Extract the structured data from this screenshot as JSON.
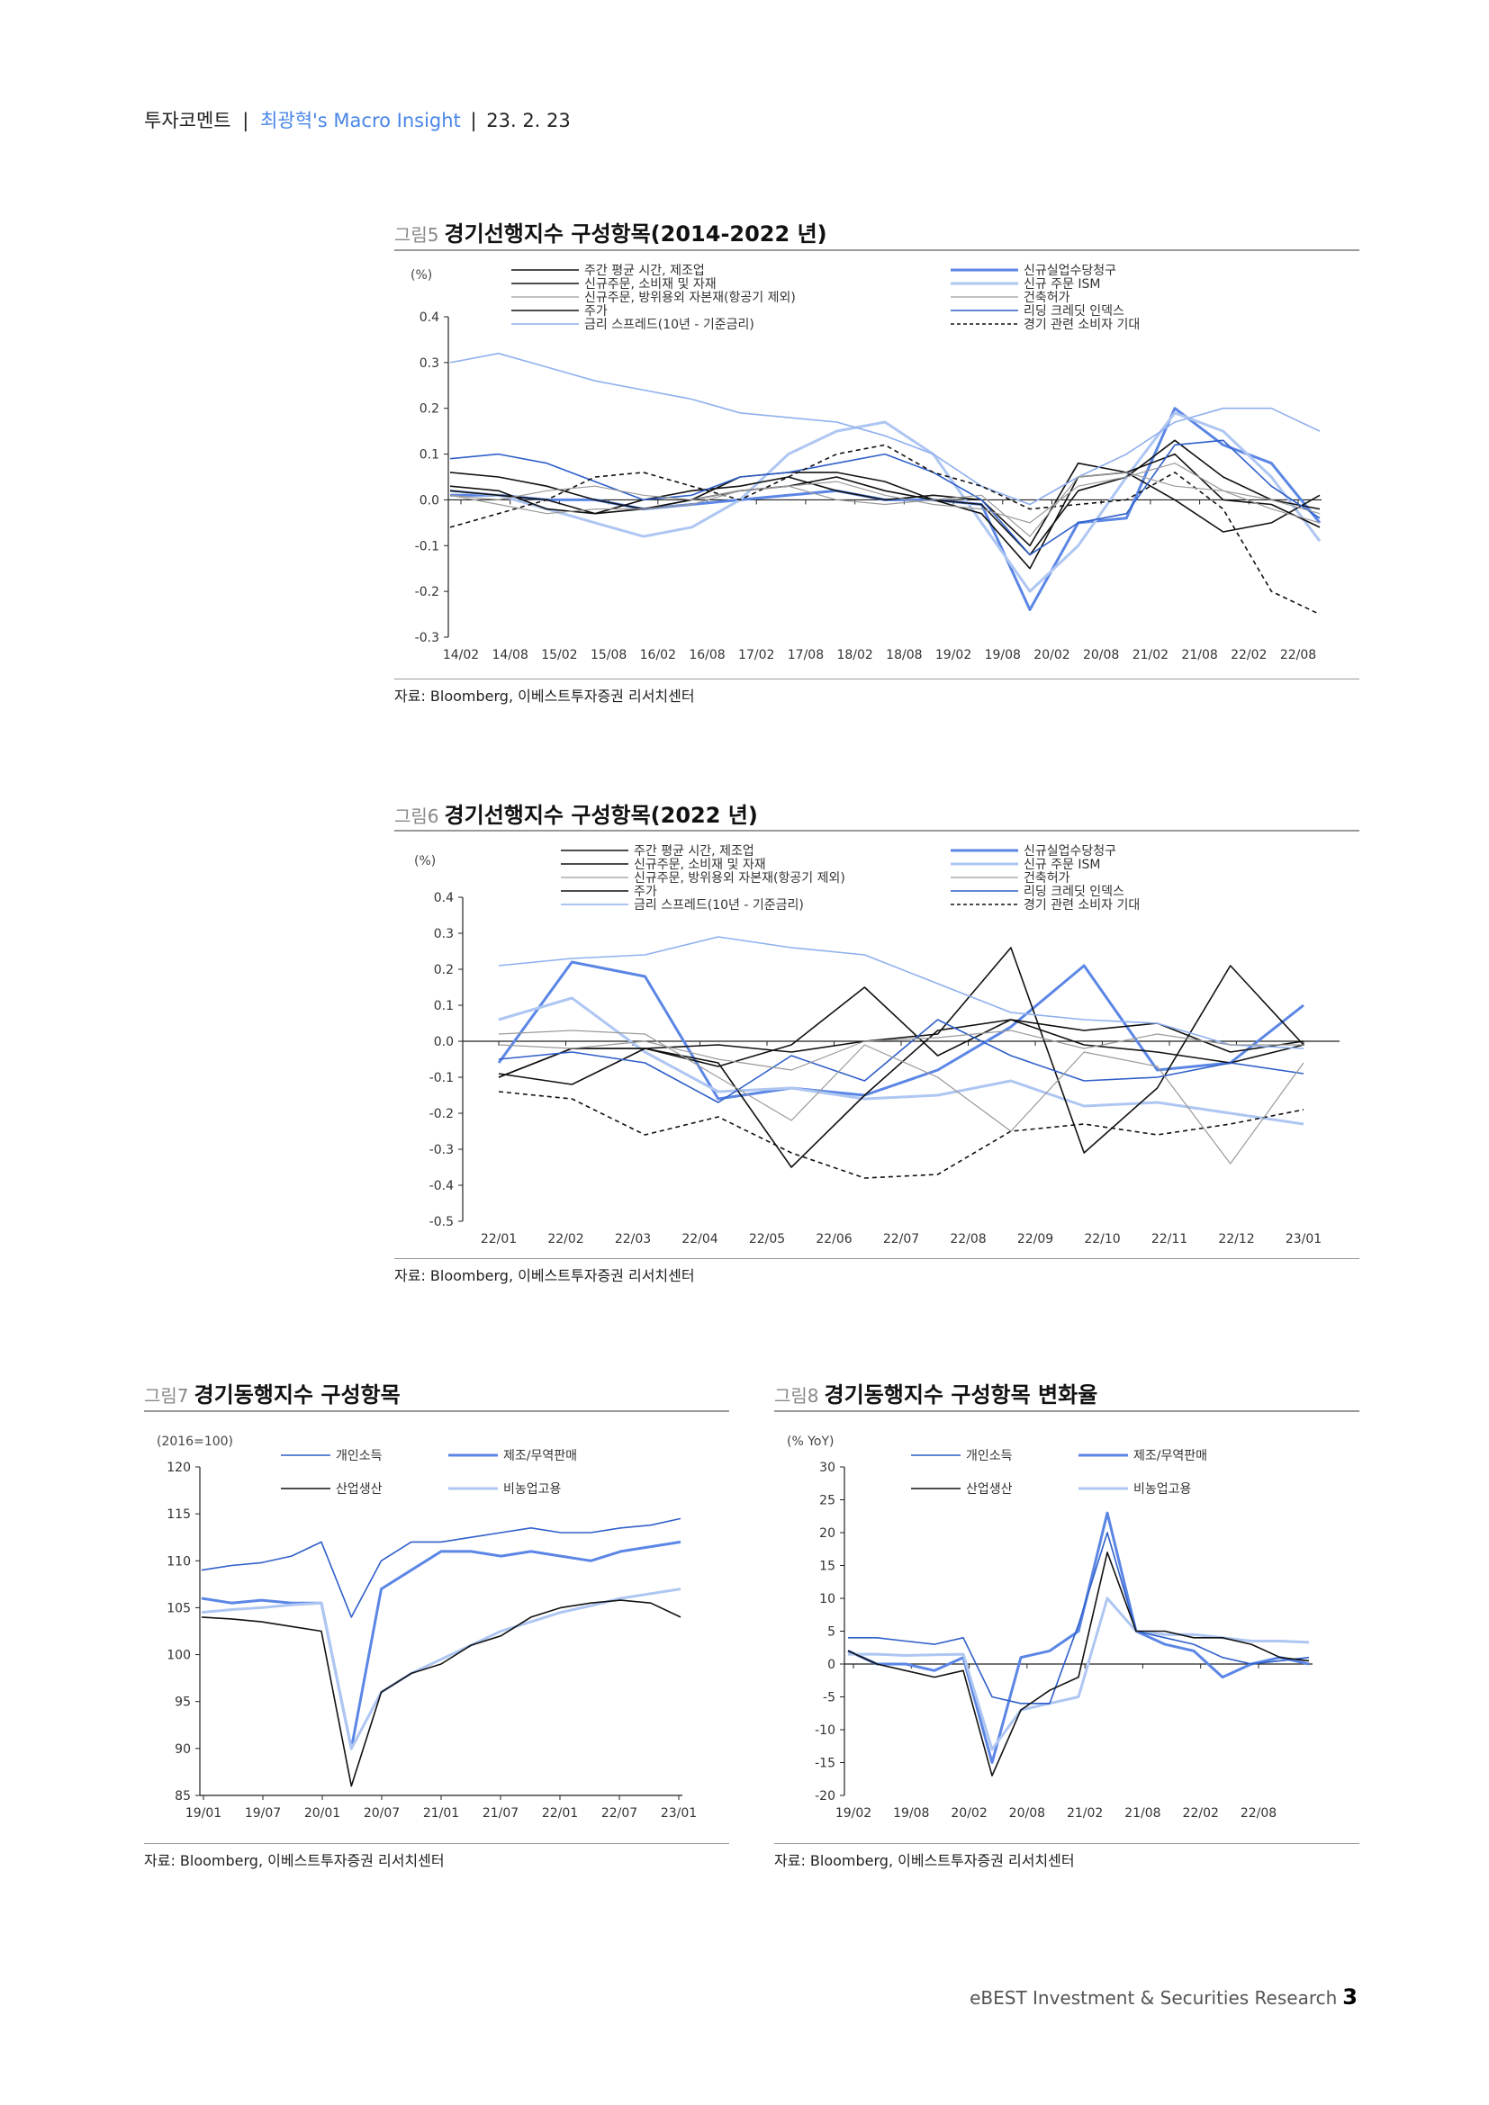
{
  "header": {
    "category": "투자코멘트",
    "separator1": "|",
    "series": "최광혁's Macro Insight",
    "separator2": "|",
    "date": "23. 2. 23"
  },
  "footer": {
    "company": "eBEST Investment & Securities Research",
    "page": "3"
  },
  "source_note": "자료: Bloomberg, 이베스트투자증권 리서치센터",
  "colors": {
    "dark": "#111111",
    "blue": "#2f5fc9",
    "mid_blue": "#5b86e5",
    "light_blue": "#aec6f2",
    "gray": "#9a9a9a",
    "pale_blue": "#8fb0ee"
  },
  "fig5": {
    "num": "그림5",
    "title": "경기선행지수 구성항목(2014-2022 년)",
    "unit": "(%)",
    "legend_left": [
      "주간 평균 시간, 제조업",
      "신규주문, 소비재 및 자재",
      "신규주문, 방위용외 자본재(항공기 제외)",
      "주가",
      "금리 스프레드(10년 - 기준금리)"
    ],
    "legend_right": [
      "신규실업수당청구",
      "신규 주문 ISM",
      "건축허가",
      "리딩 크레딧 인덱스",
      "경기 관련 소비자 기대"
    ],
    "y_ticks": [
      "0.4",
      "0.3",
      "0.2",
      "0.1",
      "0.0",
      "-0.1",
      "-0.2",
      "-0.3"
    ],
    "x_ticks": [
      "14/02",
      "14/08",
      "15/02",
      "15/08",
      "16/02",
      "16/08",
      "17/02",
      "17/08",
      "18/02",
      "18/08",
      "19/02",
      "19/08",
      "20/02",
      "20/08",
      "21/02",
      "21/08",
      "22/02",
      "22/08"
    ]
  },
  "fig6": {
    "num": "그림6",
    "title": "경기선행지수 구성항목(2022 년)",
    "unit": "(%)",
    "legend_left": [
      "주간 평균 시간, 제조업",
      "신규주문, 소비재 및 자재",
      "신규주문, 방위용외 자본재(항공기 제외)",
      "주가",
      "금리 스프레드(10년 - 기준금리)"
    ],
    "legend_right": [
      "신규실업수당청구",
      "신규 주문 ISM",
      "건축허가",
      "리딩 크레딧 인덱스",
      "경기 관련 소비자 기대"
    ],
    "y_ticks": [
      "0.4",
      "0.3",
      "0.2",
      "0.1",
      "0.0",
      "-0.1",
      "-0.2",
      "-0.3",
      "-0.4",
      "-0.5"
    ],
    "x_ticks": [
      "22/01",
      "22/02",
      "22/03",
      "22/04",
      "22/05",
      "22/06",
      "22/07",
      "22/08",
      "22/09",
      "22/10",
      "22/11",
      "22/12",
      "23/01"
    ]
  },
  "fig7": {
    "num": "그림7",
    "title": "경기동행지수 구성항목",
    "unit": "(2016=100)",
    "legend": [
      "개인소득",
      "제조/무역판매",
      "산업생산",
      "비농업고용"
    ],
    "y_ticks": [
      "120",
      "115",
      "110",
      "105",
      "100",
      "95",
      "90",
      "85"
    ],
    "x_ticks": [
      "19/01",
      "19/07",
      "20/01",
      "20/07",
      "21/01",
      "21/07",
      "22/01",
      "22/07",
      "23/01"
    ]
  },
  "fig8": {
    "num": "그림8",
    "title": "경기동행지수 구성항목 변화율",
    "unit": "(% YoY)",
    "legend": [
      "개인소득",
      "제조/무역판매",
      "산업생산",
      "비농업고용"
    ],
    "y_ticks": [
      "30",
      "25",
      "20",
      "15",
      "10",
      "5",
      "0",
      "-5",
      "-10",
      "-15",
      "-20"
    ],
    "x_ticks": [
      "19/02",
      "19/08",
      "20/02",
      "20/08",
      "21/02",
      "21/08",
      "22/02",
      "22/08"
    ]
  },
  "chart_data": [
    {
      "type": "line",
      "title": "경기선행지수 구성항목(2014-2022 년)",
      "ylabel": "(%)",
      "ylim": [
        -0.3,
        0.4
      ],
      "x": [
        "14/02",
        "14/08",
        "15/02",
        "15/08",
        "16/02",
        "16/08",
        "17/02",
        "17/08",
        "18/02",
        "18/08",
        "19/02",
        "19/08",
        "20/02",
        "20/08",
        "21/02",
        "21/08",
        "22/02",
        "22/08",
        "22/12"
      ],
      "series": [
        {
          "name": "주간 평균 시간, 제조업",
          "color": "#111111",
          "values": [
            0.06,
            0.05,
            0.03,
            0.0,
            -0.02,
            0.0,
            0.02,
            0.03,
            0.05,
            0.02,
            0.0,
            -0.03,
            -0.15,
            0.05,
            0.06,
            0.1,
            0.0,
            -0.01,
            -0.06
          ]
        },
        {
          "name": "신규주문, 소비재 및 자재",
          "color": "#111111",
          "values": [
            0.03,
            0.02,
            -0.02,
            -0.03,
            -0.02,
            0.0,
            0.05,
            0.06,
            0.06,
            0.04,
            0.0,
            -0.01,
            -0.12,
            0.02,
            0.05,
            0.13,
            0.05,
            0.0,
            -0.02
          ]
        },
        {
          "name": "신규주문, 방위용외 자본재(항공기 제외)",
          "color": "#9a9a9a",
          "values": [
            0.01,
            -0.01,
            -0.03,
            -0.02,
            -0.02,
            -0.01,
            0.02,
            0.03,
            0.04,
            0.01,
            -0.01,
            -0.02,
            -0.05,
            0.03,
            0.05,
            0.08,
            0.02,
            0.0,
            -0.03
          ]
        },
        {
          "name": "주가",
          "color": "#111111",
          "values": [
            0.02,
            0.01,
            0.0,
            -0.03,
            0.0,
            0.02,
            0.03,
            0.05,
            0.02,
            0.0,
            0.01,
            0.0,
            -0.1,
            0.08,
            0.06,
            0.0,
            -0.07,
            -0.05,
            0.01
          ]
        },
        {
          "name": "금리 스프레드(10년 - 기준금리)",
          "color": "#8fb0ee",
          "values": [
            0.3,
            0.32,
            0.29,
            0.26,
            0.24,
            0.22,
            0.19,
            0.18,
            0.17,
            0.14,
            0.1,
            0.03,
            -0.01,
            0.05,
            0.1,
            0.17,
            0.2,
            0.2,
            0.15
          ]
        },
        {
          "name": "신규실업수당청구",
          "color": "#5b86e5",
          "values": [
            0.01,
            0.01,
            0.0,
            0.0,
            -0.02,
            -0.01,
            0.0,
            0.01,
            0.02,
            0.0,
            0.0,
            -0.01,
            -0.24,
            -0.05,
            -0.04,
            0.2,
            0.12,
            0.08,
            -0.05
          ]
        },
        {
          "name": "신규 주문 ISM",
          "color": "#aec6f2",
          "values": [
            0.02,
            0.01,
            -0.02,
            -0.05,
            -0.08,
            -0.06,
            0.0,
            0.1,
            0.15,
            0.17,
            0.1,
            -0.05,
            -0.2,
            -0.1,
            0.05,
            0.19,
            0.15,
            0.05,
            -0.09
          ]
        },
        {
          "name": "건축허가",
          "color": "#9a9a9a",
          "values": [
            0.01,
            0.0,
            0.02,
            0.03,
            0.01,
            0.0,
            0.02,
            0.03,
            0.0,
            -0.01,
            0.0,
            0.01,
            -0.08,
            0.05,
            0.06,
            0.03,
            0.02,
            -0.02,
            -0.05
          ]
        },
        {
          "name": "리딩 크레딧 인덱스",
          "color": "#2f5fc9",
          "values": [
            0.09,
            0.1,
            0.08,
            0.04,
            0.0,
            0.01,
            0.05,
            0.06,
            0.08,
            0.1,
            0.06,
            0.0,
            -0.12,
            -0.05,
            -0.03,
            0.12,
            0.13,
            0.03,
            -0.04
          ]
        },
        {
          "name": "경기 관련 소비자 기대",
          "color": "#111111",
          "dashed": true,
          "values": [
            -0.06,
            -0.03,
            0.0,
            0.05,
            0.06,
            0.03,
            0.0,
            0.05,
            0.1,
            0.12,
            0.06,
            0.03,
            -0.02,
            -0.01,
            0.0,
            0.06,
            -0.02,
            -0.2,
            -0.25
          ]
        }
      ]
    },
    {
      "type": "line",
      "title": "경기선행지수 구성항목(2022 년)",
      "ylabel": "(%)",
      "ylim": [
        -0.5,
        0.4
      ],
      "x": [
        "22/01",
        "22/02",
        "22/03",
        "22/04",
        "22/05",
        "22/06",
        "22/07",
        "22/08",
        "22/09",
        "22/10",
        "22/11",
        "22/12"
      ],
      "series": [
        {
          "name": "주간 평균 시간, 제조업",
          "color": "#111111",
          "values": [
            -0.1,
            -0.02,
            -0.02,
            -0.01,
            -0.03,
            0.0,
            0.02,
            0.26,
            -0.31,
            -0.13,
            0.21,
            -0.01
          ]
        },
        {
          "name": "신규주문, 소비재 및 자재",
          "color": "#111111",
          "values": [
            -0.09,
            -0.12,
            -0.02,
            -0.07,
            -0.01,
            0.15,
            -0.04,
            0.06,
            0.03,
            0.05,
            -0.03,
            0.0
          ]
        },
        {
          "name": "신규주문, 방위용외 자본재(항공기 제외)",
          "color": "#9a9a9a",
          "values": [
            -0.01,
            -0.02,
            0.0,
            -0.05,
            -0.08,
            0.0,
            0.01,
            0.03,
            -0.02,
            0.02,
            -0.01,
            -0.01
          ]
        },
        {
          "name": "주가",
          "color": "#111111",
          "values": [
            -0.1,
            -0.02,
            -0.02,
            -0.06,
            -0.35,
            -0.15,
            0.03,
            0.06,
            -0.01,
            -0.03,
            -0.06,
            -0.01
          ]
        },
        {
          "name": "금리 스프레드(10년 - 기준금리)",
          "color": "#8fb0ee",
          "values": [
            0.21,
            0.23,
            0.24,
            0.29,
            0.26,
            0.24,
            0.16,
            0.08,
            0.06,
            0.05,
            -0.01,
            -0.02
          ]
        },
        {
          "name": "신규실업수당청구",
          "color": "#5b86e5",
          "values": [
            -0.06,
            0.22,
            0.18,
            -0.16,
            -0.13,
            -0.15,
            -0.08,
            0.04,
            0.21,
            -0.08,
            -0.06,
            0.1
          ]
        },
        {
          "name": "신규 주문 ISM",
          "color": "#aec6f2",
          "values": [
            0.06,
            0.12,
            -0.03,
            -0.14,
            -0.13,
            -0.16,
            -0.15,
            -0.11,
            -0.18,
            -0.17,
            -0.2,
            -0.23
          ]
        },
        {
          "name": "건축허가",
          "color": "#9a9a9a",
          "values": [
            0.02,
            0.03,
            0.02,
            -0.1,
            -0.22,
            -0.01,
            -0.1,
            -0.25,
            -0.03,
            -0.07,
            -0.34,
            -0.06
          ]
        },
        {
          "name": "리딩 크레딧 인덱스",
          "color": "#2f5fc9",
          "values": [
            -0.05,
            -0.03,
            -0.06,
            -0.17,
            -0.04,
            -0.11,
            0.06,
            -0.04,
            -0.11,
            -0.1,
            -0.06,
            -0.09
          ]
        },
        {
          "name": "경기 관련 소비자 기대",
          "color": "#111111",
          "dashed": true,
          "values": [
            -0.14,
            -0.16,
            -0.26,
            -0.21,
            -0.31,
            -0.38,
            -0.37,
            -0.25,
            -0.23,
            -0.26,
            -0.23,
            -0.19
          ]
        }
      ]
    },
    {
      "type": "line",
      "title": "경기동행지수 구성항목",
      "ylabel": "(2016=100)",
      "ylim": [
        85,
        120
      ],
      "x": [
        "19/01",
        "19/04",
        "19/07",
        "19/10",
        "20/01",
        "20/04",
        "20/07",
        "20/10",
        "21/01",
        "21/04",
        "21/07",
        "21/10",
        "22/01",
        "22/04",
        "22/07",
        "22/10",
        "23/01"
      ],
      "series": [
        {
          "name": "개인소득",
          "color": "#2f5fc9",
          "values": [
            109,
            109.5,
            109.8,
            110.5,
            112,
            104,
            110,
            112,
            112,
            112.5,
            113,
            113.5,
            113,
            113,
            113.5,
            113.8,
            114.5
          ]
        },
        {
          "name": "제조/무역판매",
          "color": "#5b86e5",
          "values": [
            106,
            105.5,
            105.8,
            105.5,
            105.5,
            90,
            107,
            109,
            111,
            111,
            110.5,
            111,
            110.5,
            110,
            111,
            111.5,
            112
          ]
        },
        {
          "name": "산업생산",
          "color": "#111111",
          "values": [
            104,
            103.8,
            103.5,
            103,
            102.5,
            86,
            96,
            98,
            99,
            101,
            102,
            104,
            105,
            105.5,
            105.8,
            105.5,
            104
          ]
        },
        {
          "name": "비농업고용",
          "color": "#aec6f2",
          "values": [
            104.5,
            104.8,
            105,
            105.3,
            105.5,
            90,
            96,
            98,
            99.5,
            101,
            102.5,
            103.5,
            104.5,
            105.2,
            106,
            106.5,
            107
          ]
        }
      ]
    },
    {
      "type": "line",
      "title": "경기동행지수 구성항목 변화율",
      "ylabel": "(% YoY)",
      "ylim": [
        -20,
        30
      ],
      "x": [
        "19/02",
        "19/05",
        "19/08",
        "19/11",
        "20/02",
        "20/05",
        "20/08",
        "20/11",
        "21/02",
        "21/05",
        "21/08",
        "21/11",
        "22/02",
        "22/05",
        "22/08",
        "22/11",
        "22/12"
      ],
      "series": [
        {
          "name": "개인소득",
          "color": "#2f5fc9",
          "values": [
            4,
            4,
            3.5,
            3,
            4,
            -5,
            -6,
            -6,
            6,
            20,
            5,
            4,
            3,
            1,
            0,
            0.5,
            1
          ]
        },
        {
          "name": "제조/무역판매",
          "color": "#5b86e5",
          "values": [
            2,
            0,
            0,
            -1,
            1,
            -15,
            1,
            2,
            5,
            23,
            5,
            3,
            2,
            -2,
            0,
            1,
            0
          ]
        },
        {
          "name": "산업생산",
          "color": "#111111",
          "values": [
            2,
            0,
            -1,
            -2,
            -1,
            -17,
            -7,
            -4,
            -2,
            17,
            5,
            5,
            4,
            4,
            3,
            1,
            0.5
          ]
        },
        {
          "name": "비농업고용",
          "color": "#aec6f2",
          "values": [
            1.5,
            1.5,
            1.3,
            1.4,
            1.5,
            -13,
            -7,
            -6,
            -5,
            10,
            5,
            4.5,
            4.5,
            4,
            3.5,
            3.5,
            3.3
          ]
        }
      ]
    }
  ]
}
